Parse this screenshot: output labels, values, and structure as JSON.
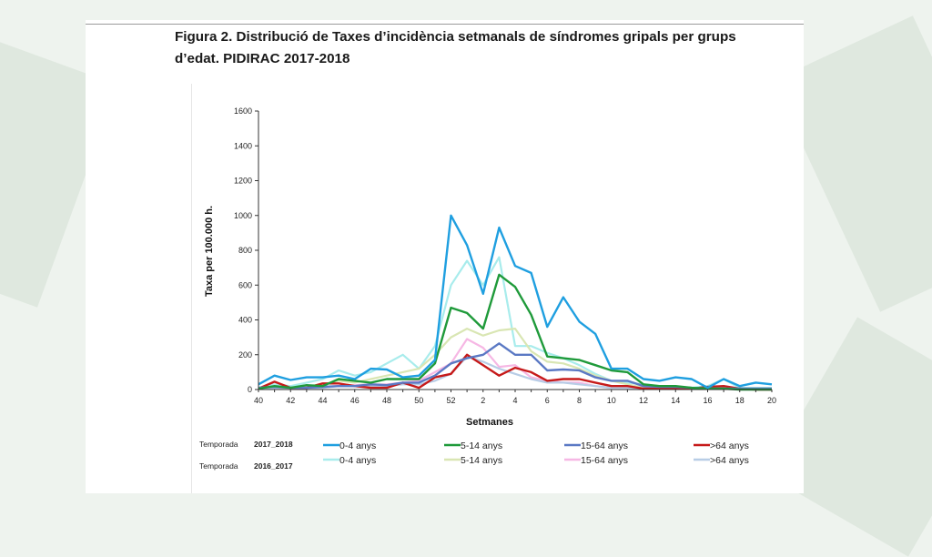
{
  "figure": {
    "title_line1": "Figura 2. Distribució de Taxes d’incidència setmanals de síndromes gripals per grups",
    "title_line2": "d’edat. PIDIRAC 2017-2018"
  },
  "legend": {
    "season_label": "Temporada",
    "season_2017": "2017_2018",
    "season_2016": "2016_2017"
  },
  "colors": {
    "s2017_0_4": "#1f9fe0",
    "s2017_5_14": "#1f9a3a",
    "s2017_15_64": "#5b79c4",
    "s2017_gt64": "#c61a1a",
    "s2016_0_4": "#a8ecec",
    "s2016_5_14": "#d9e6b3",
    "s2016_15_64": "#f6b7e4",
    "s2016_gt64": "#b8cde6"
  },
  "chart_data": {
    "type": "line",
    "title": "",
    "xlabel": "Setmanes",
    "ylabel": "Taxa per 100.000 h.",
    "ylim": [
      0,
      1600
    ],
    "yticks": [
      "0",
      "200",
      "400",
      "600",
      "800",
      "1000",
      "1200",
      "1400",
      "1600"
    ],
    "xticks": [
      "40",
      "42",
      "44",
      "46",
      "48",
      "50",
      "52",
      "2",
      "4",
      "6",
      "8",
      "10",
      "12",
      "14",
      "16",
      "18",
      "20"
    ],
    "x": [
      "40",
      "41",
      "42",
      "43",
      "44",
      "45",
      "46",
      "47",
      "48",
      "49",
      "50",
      "51",
      "52",
      "1",
      "2",
      "3",
      "4",
      "5",
      "6",
      "7",
      "8",
      "9",
      "10",
      "11",
      "12",
      "13",
      "14",
      "15",
      "16",
      "17",
      "18",
      "19",
      "20"
    ],
    "grid": false,
    "series": [
      {
        "name": "0-4 anys",
        "season": "2017_2018",
        "color_key": "s2017_0_4",
        "values": [
          30,
          80,
          55,
          70,
          70,
          80,
          60,
          120,
          115,
          70,
          80,
          170,
          1000,
          830,
          550,
          930,
          710,
          670,
          360,
          530,
          390,
          320,
          120,
          120,
          60,
          50,
          70,
          60,
          10,
          60,
          20,
          40,
          30
        ]
      },
      {
        "name": "5-14 anys",
        "season": "2017_2018",
        "color_key": "s2017_5_14",
        "values": [
          5,
          20,
          10,
          25,
          20,
          60,
          50,
          40,
          60,
          60,
          60,
          150,
          470,
          440,
          350,
          660,
          590,
          430,
          190,
          180,
          170,
          140,
          110,
          100,
          30,
          20,
          20,
          10,
          5,
          5,
          0,
          0,
          0
        ]
      },
      {
        "name": "15-64 anys",
        "season": "2017_2018",
        "color_key": "s2017_15_64",
        "values": [
          10,
          15,
          10,
          10,
          15,
          20,
          20,
          30,
          25,
          40,
          40,
          80,
          150,
          180,
          200,
          265,
          200,
          200,
          110,
          115,
          110,
          70,
          50,
          50,
          20,
          15,
          15,
          10,
          5,
          5,
          5,
          5,
          5
        ]
      },
      {
        "name": ">64 anys",
        "season": "2017_2018",
        "color_key": "s2017_gt64",
        "values": [
          5,
          45,
          10,
          10,
          35,
          35,
          20,
          10,
          10,
          40,
          10,
          70,
          90,
          200,
          140,
          80,
          125,
          100,
          50,
          60,
          60,
          40,
          20,
          20,
          5,
          5,
          5,
          5,
          15,
          20,
          5,
          0,
          0
        ]
      },
      {
        "name": "0-4 anys",
        "season": "2016_2017",
        "color_key": "s2016_0_4",
        "values": [
          10,
          30,
          20,
          40,
          60,
          110,
          80,
          100,
          150,
          200,
          120,
          250,
          600,
          740,
          600,
          760,
          250,
          250,
          210,
          180,
          140,
          90,
          50,
          40,
          30,
          20,
          10,
          10,
          20,
          60,
          10,
          10,
          10
        ]
      },
      {
        "name": "5-14 anys",
        "season": "2016_2017",
        "color_key": "s2016_5_14",
        "values": [
          5,
          10,
          10,
          20,
          30,
          50,
          40,
          60,
          80,
          100,
          120,
          200,
          300,
          350,
          310,
          340,
          350,
          220,
          160,
          150,
          120,
          80,
          50,
          30,
          10,
          10,
          5,
          5,
          5,
          5,
          5,
          5,
          5
        ]
      },
      {
        "name": "15-64 anys",
        "season": "2016_2017",
        "color_key": "s2016_15_64",
        "values": [
          5,
          10,
          10,
          15,
          15,
          20,
          25,
          30,
          30,
          40,
          50,
          100,
          150,
          290,
          240,
          130,
          140,
          70,
          50,
          40,
          40,
          20,
          10,
          10,
          5,
          5,
          5,
          5,
          5,
          5,
          5,
          5,
          5
        ]
      },
      {
        "name": ">64 anys",
        "season": "2016_2017",
        "color_key": "s2016_gt64",
        "values": [
          5,
          10,
          10,
          10,
          10,
          20,
          20,
          20,
          20,
          30,
          30,
          50,
          90,
          190,
          160,
          120,
          90,
          60,
          40,
          40,
          30,
          20,
          10,
          10,
          5,
          5,
          5,
          5,
          5,
          5,
          5,
          5,
          5
        ]
      }
    ]
  }
}
